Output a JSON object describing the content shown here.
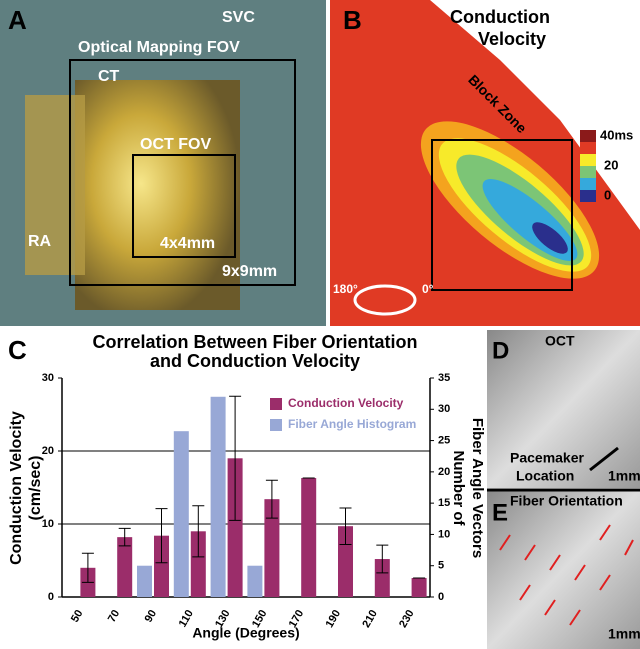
{
  "panels": {
    "a": {
      "letter": "A",
      "svc": "SVC",
      "fov": "Optical Mapping FOV",
      "ct": "CT",
      "oct_fov": "OCT FOV",
      "ra": "RA",
      "small": "4x4mm",
      "large": "9x9mm"
    },
    "b": {
      "letter": "B",
      "title": [
        "Conduction",
        "Velocity"
      ],
      "block": "Block Zone",
      "scale": [
        "40ms",
        "20",
        "0"
      ],
      "left_angle": "180°",
      "right_angle": "0°"
    },
    "d": {
      "letter": "D",
      "title": "OCT",
      "pacemaker": [
        "Pacemaker",
        "Location"
      ],
      "scale": "1mm"
    },
    "e": {
      "letter": "E",
      "title": "Fiber Orientation",
      "scale": "1mm"
    }
  },
  "chart_data": {
    "type": "bar",
    "letter": "C",
    "title": [
      "Correlation Between Fiber Orientation",
      "and Conduction Velocity"
    ],
    "xlabel": "Angle (Degrees)",
    "ylabel": [
      "Conduction Velocity",
      "(cm/sec)"
    ],
    "y2label": [
      "Number of",
      "Fiber Angle Vectors"
    ],
    "categories": [
      "50",
      "70",
      "90",
      "110",
      "130",
      "150",
      "170",
      "190",
      "210",
      "230"
    ],
    "ylim": [
      0,
      30
    ],
    "yticks": [
      0,
      10,
      20,
      30
    ],
    "grid": [
      10,
      20
    ],
    "y2lim": [
      0,
      35
    ],
    "y2ticks": [
      0,
      5,
      10,
      15,
      20,
      25,
      30,
      35
    ],
    "series": [
      {
        "name": "Conduction Velocity",
        "color": "#9b2d6a",
        "values": [
          4,
          8.2,
          8.4,
          9,
          19,
          13.4,
          16.3,
          9.7,
          5.2,
          2.6
        ],
        "errors": [
          2,
          1.2,
          3.7,
          3.5,
          8.5,
          2.6,
          0,
          2.5,
          1.9,
          0
        ]
      },
      {
        "name": "Fiber Angle  Histogram",
        "color": "#98a8d6",
        "axis": "y2",
        "values": [
          0,
          0,
          5,
          26.5,
          32,
          5,
          0,
          0,
          0,
          0
        ]
      }
    ]
  }
}
